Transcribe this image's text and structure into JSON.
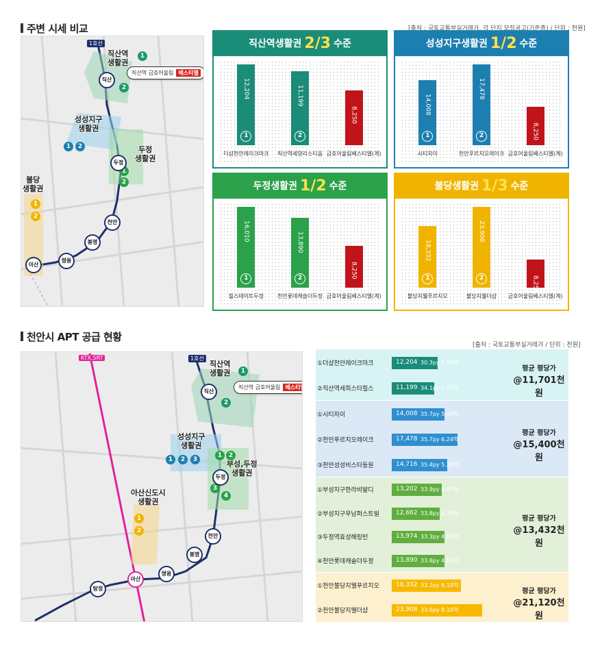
{
  "section1": {
    "title": "주변 시세 비교",
    "source": "[출처 : 국토교통부실거래가, 각 단지 모집공고(기준층) / 단위 : 천원]"
  },
  "map1": {
    "line_label": "1호선",
    "callout": "직산역 금호어울림",
    "callout_tag": "베스티엘",
    "zones": [
      {
        "label": "직산역\n생활권",
        "nums": [
          "1",
          "2"
        ]
      },
      {
        "label": "성성지구\n생활권",
        "nums": [
          "1",
          "2"
        ]
      },
      {
        "label": "두정\n생활권",
        "nums": [
          "1",
          "2"
        ]
      },
      {
        "label": "불당\n생활권",
        "nums": [
          "1",
          "2"
        ]
      }
    ],
    "stations": [
      "직산",
      "두정",
      "천안",
      "봉명",
      "쌍용",
      "아산"
    ]
  },
  "panels": [
    {
      "title_pre": "직산역생활권",
      "ratio": "2/3",
      "title_post": "수준",
      "color": "#1a8c78",
      "bars": [
        {
          "label": "더샵천안레이크마크",
          "value": "12,204",
          "num": "1",
          "color": "#1a8c78",
          "v": 12204
        },
        {
          "label": "직산역세영리스티움",
          "value": "11,199",
          "num": "2",
          "color": "#1a8c78",
          "v": 11199
        },
        {
          "label": "금호어울림베스티엘(계)",
          "value": "8,250",
          "num": "",
          "color": "#c0141a",
          "v": 8250
        }
      ]
    },
    {
      "title_pre": "성성지구생활권",
      "ratio": "1/2",
      "title_post": "수준",
      "color": "#1d7fb0",
      "bars": [
        {
          "label": "시티자이",
          "value": "14,008",
          "num": "1",
          "color": "#1d7fb0",
          "v": 14008
        },
        {
          "label": "천안푸르지오레이크",
          "value": "17,478",
          "num": "2",
          "color": "#1d7fb0",
          "v": 17478
        },
        {
          "label": "금호어울림베스티엘(계)",
          "value": "8,250",
          "num": "",
          "color": "#c0141a",
          "v": 8250
        }
      ]
    },
    {
      "title_pre": "두정생활권",
      "ratio": "1/2",
      "title_post": "수준",
      "color": "#2aa14a",
      "bars": [
        {
          "label": "힐스테이트두정",
          "value": "16,010",
          "num": "1",
          "color": "#2aa14a",
          "v": 16010
        },
        {
          "label": "천안롯데캐슬더두정",
          "value": "13,890",
          "num": "2",
          "color": "#2aa14a",
          "v": 13890
        },
        {
          "label": "금호어울림베스티엘(계)",
          "value": "8,250",
          "num": "",
          "color": "#c0141a",
          "v": 8250
        }
      ]
    },
    {
      "title_pre": "불당생활권",
      "ratio": "1/3",
      "title_post": "수준",
      "color": "#f0b400",
      "bars": [
        {
          "label": "불당지웰푸르지오",
          "value": "18,332",
          "num": "1",
          "color": "#f0b400",
          "v": 18332
        },
        {
          "label": "불당지웰더샵",
          "value": "23,908",
          "num": "2",
          "color": "#f0b400",
          "v": 23908
        },
        {
          "label": "금호어울림베스티엘(계)",
          "value": "8,250",
          "num": "",
          "color": "#c0141a",
          "v": 8250
        }
      ]
    }
  ],
  "section2": {
    "title": "천안시 APT 공급 현황",
    "source": "[출처 : 국토교통부실거래가 / 단위 : 천원]"
  },
  "map2": {
    "line_label": "1호선",
    "ktx_label": "KTX,SRT",
    "callout": "직산역 금호어울림",
    "callout_tag": "베스티엘",
    "zones": [
      {
        "label": "직산역\n생활권",
        "nums": [
          "1",
          "2"
        ]
      },
      {
        "label": "성성지구\n생활권",
        "nums": [
          "1",
          "2",
          "3"
        ]
      },
      {
        "label": "부성,두정\n생활권",
        "nums": [
          "1",
          "2",
          "3",
          "4"
        ]
      },
      {
        "label": "아산신도시\n생활권",
        "nums": [
          "1",
          "2"
        ]
      }
    ],
    "stations": [
      "직산",
      "두정",
      "천안",
      "봉명",
      "쌍용",
      "아산",
      "탕정"
    ]
  },
  "supply": [
    {
      "bg": "#d8f3f4",
      "bar": "#1a8c78",
      "avg1": "평균 평당가",
      "avg2": "@11,701천원",
      "rows": [
        {
          "name": "①더샵천안레이크마크",
          "value": "12,204",
          "py": "30.3py 3.69억",
          "v": 12204
        },
        {
          "name": "②직산역세희스타힐스",
          "value": "11,199",
          "py": "34.1py 3.82억",
          "v": 11199
        }
      ]
    },
    {
      "bg": "#dbe8f5",
      "bar": "#2f8fd0",
      "avg1": "평균 평당가",
      "avg2": "@15,400천원",
      "rows": [
        {
          "name": "①시티자이",
          "value": "14,008",
          "py": "35.7py 5.00억",
          "v": 14008
        },
        {
          "name": "②천안푸르지오레이크",
          "value": "17,478",
          "py": "35.7py 6.24억",
          "v": 17478
        },
        {
          "name": "③천안성성비스타동원",
          "value": "14,716",
          "py": "35.4py 5.20억",
          "v": 14716
        }
      ]
    },
    {
      "bg": "#e2f0da",
      "bar": "#5fae3f",
      "avg1": "평균 평당가",
      "avg2": "@13,432천원",
      "rows": [
        {
          "name": "①부성지구한라비발디",
          "value": "13,202",
          "py": "33.9py 4.47억",
          "v": 13202
        },
        {
          "name": "②부성지구우남퍼스트빌",
          "value": "12,662",
          "py": "33.8py 4.28억",
          "v": 12662
        },
        {
          "name": "③두정역효성해링턴",
          "value": "13,974",
          "py": "33.3py 4.65억",
          "v": 13974
        },
        {
          "name": "④천안롯데캐슬더두정",
          "value": "13,890",
          "py": "33.6py 4.66억",
          "v": 13890
        }
      ]
    },
    {
      "bg": "#fdf0cf",
      "bar": "#f7b900",
      "avg1": "평균 평당가",
      "avg2": "@21,120천원",
      "rows": [
        {
          "name": "①천안불당지웰푸르지오",
          "value": "18,332",
          "py": "33.2py 6.10억",
          "v": 18332
        },
        {
          "name": "②천안불당지웰더샵",
          "value": "23,908",
          "py": "33.6py 8.10억",
          "v": 23908
        }
      ]
    }
  ],
  "chart_data": [
    {
      "type": "bar",
      "title": "직산역생활권 2/3 수준",
      "categories": [
        "더샵천안레이크마크",
        "직산역세영리스티움",
        "금호어울림베스티엘(계)"
      ],
      "values": [
        12204,
        11199,
        8250
      ]
    },
    {
      "type": "bar",
      "title": "성성지구생활권 1/2 수준",
      "categories": [
        "시티자이",
        "천안푸르지오레이크",
        "금호어울림베스티엘(계)"
      ],
      "values": [
        14008,
        17478,
        8250
      ]
    },
    {
      "type": "bar",
      "title": "두정생활권 1/2 수준",
      "categories": [
        "힐스테이트두정",
        "천안롯데캐슬더두정",
        "금호어울림베스티엘(계)"
      ],
      "values": [
        16010,
        13890,
        8250
      ]
    },
    {
      "type": "bar",
      "title": "불당생활권 1/3 수준",
      "categories": [
        "불당지웰푸르지오",
        "불당지웰더샵",
        "금호어울림베스티엘(계)"
      ],
      "values": [
        18332,
        23908,
        8250
      ]
    }
  ]
}
